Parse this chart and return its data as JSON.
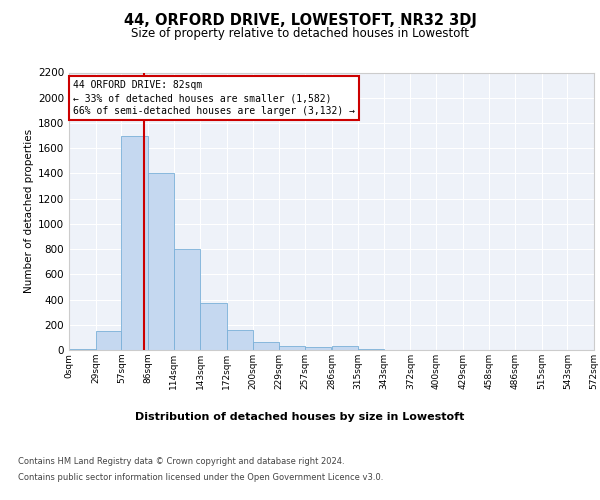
{
  "title": "44, ORFORD DRIVE, LOWESTOFT, NR32 3DJ",
  "subtitle": "Size of property relative to detached houses in Lowestoft",
  "xlabel": "Distribution of detached houses by size in Lowestoft",
  "ylabel": "Number of detached properties",
  "bar_color": "#c5d8f0",
  "bar_edge_color": "#7ab0d8",
  "background_color": "#eef2f9",
  "grid_color": "#ffffff",
  "bin_edges": [
    0,
    29,
    57,
    86,
    114,
    143,
    172,
    200,
    229,
    257,
    286,
    315,
    343,
    372,
    400,
    429,
    458,
    486,
    515,
    543,
    572
  ],
  "bin_counts": [
    10,
    150,
    1700,
    1400,
    800,
    370,
    160,
    60,
    30,
    20,
    30,
    5,
    2,
    2,
    2,
    2,
    1,
    1,
    1,
    1
  ],
  "red_line_x": 82,
  "annotation_line1": "44 ORFORD DRIVE: 82sqm",
  "annotation_line2": "← 33% of detached houses are smaller (1,582)",
  "annotation_line3": "66% of semi-detached houses are larger (3,132) →",
  "annotation_box_color": "#ffffff",
  "annotation_box_edge_color": "#cc0000",
  "ylim_max": 2200,
  "yticks": [
    0,
    200,
    400,
    600,
    800,
    1000,
    1200,
    1400,
    1600,
    1800,
    2000,
    2200
  ],
  "footer_line1": "Contains HM Land Registry data © Crown copyright and database right 2024.",
  "footer_line2": "Contains public sector information licensed under the Open Government Licence v3.0."
}
